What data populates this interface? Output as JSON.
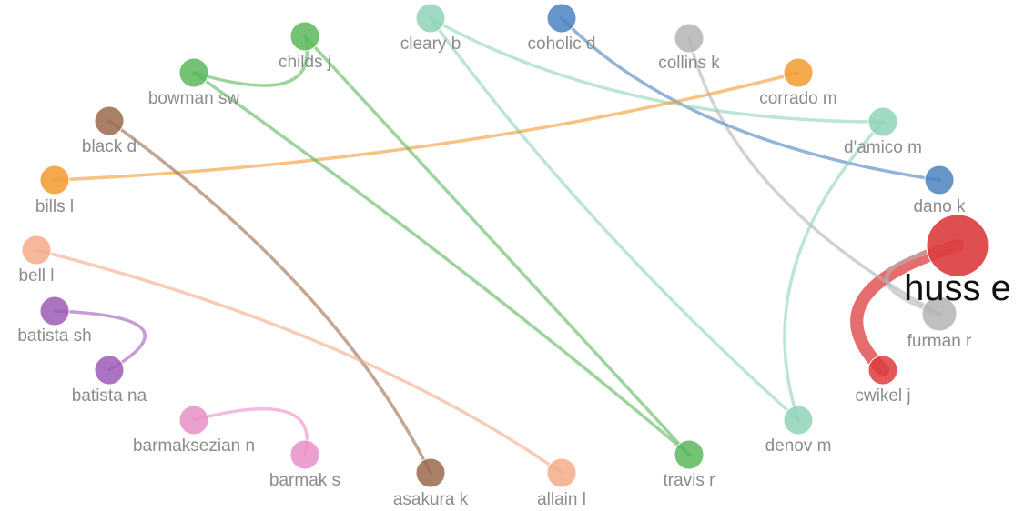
{
  "colors": {
    "red": "#dc3c3c",
    "gray": "#b4b4b4",
    "blue": "#4a82c0",
    "teal": "#8fd4b8",
    "orange": "#f39a30",
    "green": "#5cb85c",
    "brown": "#9a6a4a",
    "salmon": "#f4aa8a",
    "purple": "#9e5bb8",
    "pink": "#e890c8"
  },
  "nodes": [
    {
      "id": "huss",
      "label": "huss e",
      "color": "red",
      "size": "large",
      "focus": true
    },
    {
      "id": "furman",
      "label": "furman r",
      "color": "gray",
      "size": "medium"
    },
    {
      "id": "cwikel",
      "label": "cwikel j",
      "color": "red",
      "size": "small"
    },
    {
      "id": "dano",
      "label": "dano k",
      "color": "blue",
      "size": "small"
    },
    {
      "id": "damico",
      "label": "d'amico m",
      "color": "teal",
      "size": "small"
    },
    {
      "id": "corrado",
      "label": "corrado m",
      "color": "orange",
      "size": "small"
    },
    {
      "id": "collins",
      "label": "collins k",
      "color": "gray",
      "size": "small"
    },
    {
      "id": "coholic",
      "label": "coholic d",
      "color": "blue",
      "size": "small"
    },
    {
      "id": "cleary",
      "label": "cleary b",
      "color": "teal",
      "size": "small"
    },
    {
      "id": "childs",
      "label": "childs j",
      "color": "green",
      "size": "small"
    },
    {
      "id": "bowman",
      "label": "bowman sw",
      "color": "green",
      "size": "small"
    },
    {
      "id": "black",
      "label": "black d",
      "color": "brown",
      "size": "small"
    },
    {
      "id": "bills",
      "label": "bills l",
      "color": "orange",
      "size": "small"
    },
    {
      "id": "bell",
      "label": "bell l",
      "color": "salmon",
      "size": "small"
    },
    {
      "id": "batistash",
      "label": "batista sh",
      "color": "purple",
      "size": "small"
    },
    {
      "id": "batistana",
      "label": "batista na",
      "color": "purple",
      "size": "small"
    },
    {
      "id": "barmaksezian",
      "label": "barmaksezian n",
      "color": "pink",
      "size": "small"
    },
    {
      "id": "barmak",
      "label": "barmak s",
      "color": "pink",
      "size": "small"
    },
    {
      "id": "asakura",
      "label": "asakura k",
      "color": "brown",
      "size": "small"
    },
    {
      "id": "allain",
      "label": "allain l",
      "color": "salmon",
      "size": "small"
    },
    {
      "id": "travis",
      "label": "travis r",
      "color": "green",
      "size": "small"
    },
    {
      "id": "denov",
      "label": "denov m",
      "color": "teal",
      "size": "small"
    }
  ],
  "edges": [
    {
      "from": "huss",
      "to": "cwikel",
      "color": "red",
      "weight": "heavy"
    },
    {
      "from": "huss",
      "to": "furman",
      "color": "gray",
      "weight": "medium"
    },
    {
      "from": "collins",
      "to": "furman",
      "color": "gray",
      "weight": "normal"
    },
    {
      "from": "coholic",
      "to": "dano",
      "color": "blue",
      "weight": "normal"
    },
    {
      "from": "cleary",
      "to": "damico",
      "color": "teal",
      "weight": "normal"
    },
    {
      "from": "cleary",
      "to": "denov",
      "color": "teal",
      "weight": "normal"
    },
    {
      "from": "damico",
      "to": "denov",
      "color": "teal",
      "weight": "normal"
    },
    {
      "from": "bills",
      "to": "corrado",
      "color": "orange",
      "weight": "normal"
    },
    {
      "from": "bowman",
      "to": "childs",
      "color": "green",
      "weight": "normal"
    },
    {
      "from": "childs",
      "to": "travis",
      "color": "green",
      "weight": "normal"
    },
    {
      "from": "bowman",
      "to": "travis",
      "color": "green",
      "weight": "normal"
    },
    {
      "from": "black",
      "to": "asakura",
      "color": "brown",
      "weight": "normal"
    },
    {
      "from": "bell",
      "to": "allain",
      "color": "salmon",
      "weight": "normal"
    },
    {
      "from": "batistash",
      "to": "batistana",
      "color": "purple",
      "weight": "normal"
    },
    {
      "from": "barmaksezian",
      "to": "barmak",
      "color": "pink",
      "weight": "normal"
    }
  ]
}
